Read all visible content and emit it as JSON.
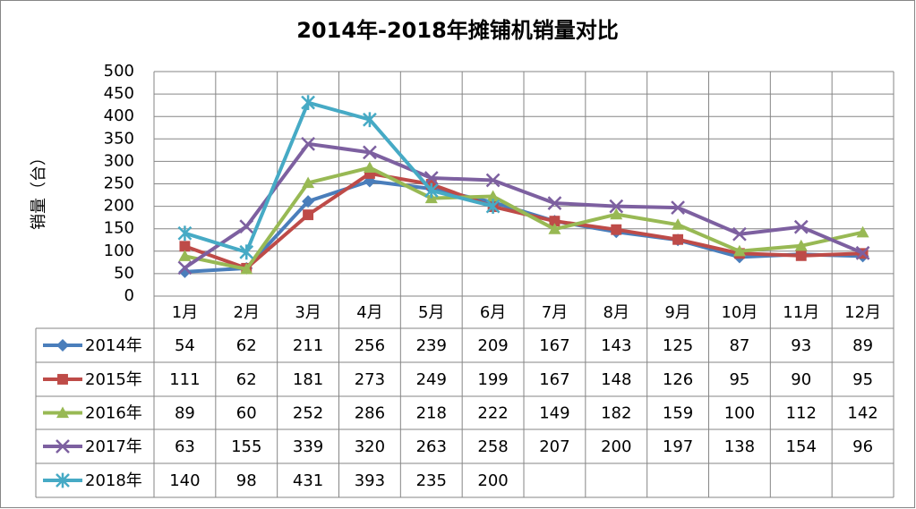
{
  "chart_data": {
    "type": "line",
    "title": "2014年-2018年摊铺机销量对比",
    "y_label": "销量（台）",
    "categories": [
      "1月",
      "2月",
      "3月",
      "4月",
      "5月",
      "6月",
      "7月",
      "8月",
      "9月",
      "10月",
      "11月",
      "12月"
    ],
    "ylim": [
      0,
      500
    ],
    "yticks": [
      0,
      50,
      100,
      150,
      200,
      250,
      300,
      350,
      400,
      450,
      500
    ],
    "grid": true,
    "data_table": true,
    "series": [
      {
        "name": "2014年",
        "color": "#4a7ebb",
        "marker": "diamond",
        "values": [
          54,
          62,
          211,
          256,
          239,
          209,
          167,
          143,
          125,
          87,
          93,
          89
        ]
      },
      {
        "name": "2015年",
        "color": "#be4b48",
        "marker": "square",
        "values": [
          111,
          62,
          181,
          273,
          249,
          199,
          167,
          148,
          126,
          95,
          90,
          95
        ]
      },
      {
        "name": "2016年",
        "color": "#98b954",
        "marker": "triangle",
        "values": [
          89,
          60,
          252,
          286,
          218,
          222,
          149,
          182,
          159,
          100,
          112,
          142
        ]
      },
      {
        "name": "2017年",
        "color": "#7d60a0",
        "marker": "x",
        "values": [
          63,
          155,
          339,
          320,
          263,
          258,
          207,
          200,
          197,
          138,
          154,
          96
        ]
      },
      {
        "name": "2018年",
        "color": "#46aac5",
        "marker": "star",
        "values": [
          140,
          98,
          431,
          393,
          235,
          200,
          null,
          null,
          null,
          null,
          null,
          null
        ]
      }
    ]
  }
}
